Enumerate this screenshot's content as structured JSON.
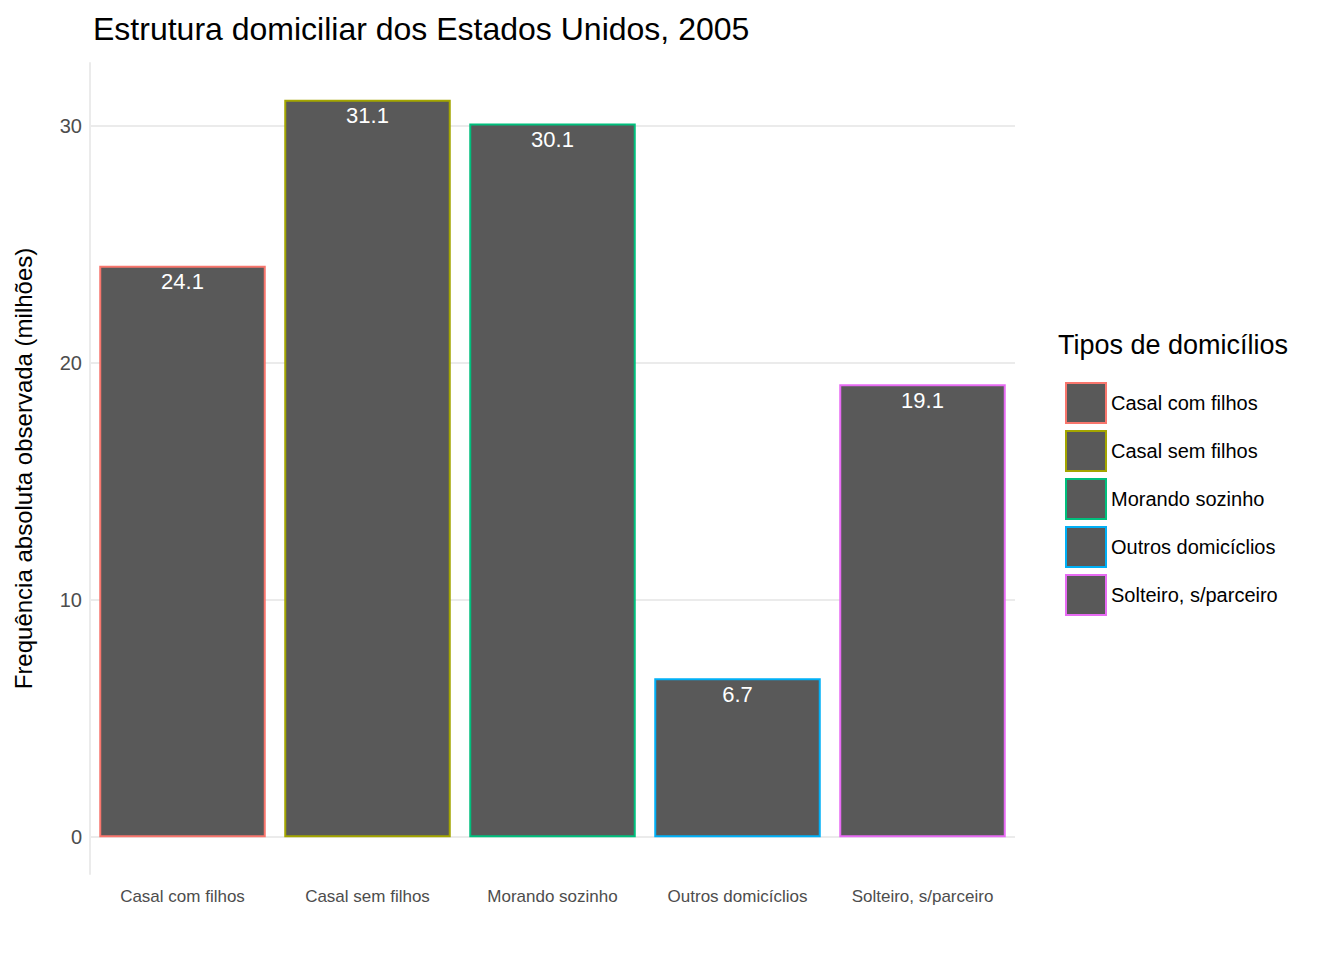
{
  "chart_data": {
    "type": "bar",
    "title": "Estrutura domiciliar dos Estados Unidos, 2005",
    "y_label": "Frequência absoluta observada (milhões)",
    "legend_title": "Tipos de domicílios",
    "categories": [
      "Casal com filhos",
      "Casal sem filhos",
      "Morando sozinho",
      "Outros domicíclios",
      "Solteiro, s/parceiro"
    ],
    "values": [
      24.1,
      31.1,
      30.1,
      6.7,
      19.1
    ],
    "color": "#595959",
    "colors": [
      "#F8766D",
      "#A3A500",
      "#00BF7D",
      "#00B0F6",
      "#E76BF3"
    ],
    "ylim": [
      -1.555,
      32.655
    ],
    "yticks": [
      0,
      10,
      20,
      30
    ],
    "grid": true,
    "legend": "right",
    "data_labels": true
  }
}
